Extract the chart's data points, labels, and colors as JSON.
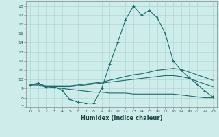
{
  "title": "",
  "xlabel": "Humidex (Indice chaleur)",
  "x_ticks": [
    0,
    1,
    2,
    3,
    4,
    5,
    6,
    7,
    8,
    9,
    10,
    11,
    12,
    13,
    14,
    15,
    16,
    17,
    18,
    19,
    20,
    21,
    22,
    23
  ],
  "ylim": [
    7,
    18.5
  ],
  "yticks": [
    7,
    8,
    9,
    10,
    11,
    12,
    13,
    14,
    15,
    16,
    17,
    18
  ],
  "background_color": "#ceecea",
  "grid_color": "#aed8d4",
  "line_color": "#1a6b6b",
  "series": [
    {
      "x": [
        0,
        1,
        2,
        3,
        4,
        5,
        6,
        7,
        8,
        9,
        10,
        11,
        12,
        13,
        14,
        15,
        16,
        17,
        18,
        19,
        20,
        21,
        22,
        23
      ],
      "y": [
        9.4,
        9.6,
        9.2,
        9.2,
        8.8,
        7.8,
        7.5,
        7.4,
        7.4,
        9.0,
        11.6,
        14.0,
        16.5,
        18.0,
        17.0,
        17.5,
        16.7,
        15.0,
        12.0,
        11.0,
        10.2,
        9.5,
        8.7,
        8.1
      ],
      "marker": "+"
    },
    {
      "x": [
        0,
        1,
        2,
        3,
        4,
        5,
        6,
        7,
        8,
        9,
        10,
        11,
        12,
        13,
        14,
        15,
        16,
        17,
        18,
        19,
        20,
        21,
        22,
        23
      ],
      "y": [
        9.4,
        9.5,
        9.3,
        9.3,
        9.3,
        9.3,
        9.4,
        9.5,
        9.6,
        9.7,
        9.9,
        10.1,
        10.3,
        10.5,
        10.6,
        10.8,
        11.0,
        11.1,
        11.2,
        11.1,
        10.8,
        10.5,
        10.2,
        9.9
      ],
      "marker": null
    },
    {
      "x": [
        0,
        1,
        2,
        3,
        4,
        5,
        6,
        7,
        8,
        9,
        10,
        11,
        12,
        13,
        14,
        15,
        16,
        17,
        18,
        19,
        20,
        21,
        22,
        23
      ],
      "y": [
        9.4,
        9.4,
        9.2,
        9.2,
        9.2,
        9.2,
        9.3,
        9.4,
        9.5,
        9.6,
        9.7,
        9.8,
        9.9,
        10.0,
        10.1,
        10.2,
        10.3,
        10.4,
        10.4,
        10.3,
        10.1,
        9.8,
        9.5,
        9.2
      ],
      "marker": null
    },
    {
      "x": [
        0,
        1,
        2,
        3,
        4,
        5,
        6,
        7,
        8,
        9,
        10,
        11,
        12,
        13,
        14,
        15,
        16,
        17,
        18,
        19,
        20,
        21,
        22,
        23
      ],
      "y": [
        9.3,
        9.3,
        9.2,
        9.1,
        9.0,
        8.9,
        8.8,
        8.7,
        8.6,
        8.6,
        8.5,
        8.5,
        8.5,
        8.4,
        8.4,
        8.4,
        8.4,
        8.4,
        8.4,
        8.3,
        8.2,
        8.1,
        8.0,
        8.0
      ],
      "marker": null
    }
  ]
}
